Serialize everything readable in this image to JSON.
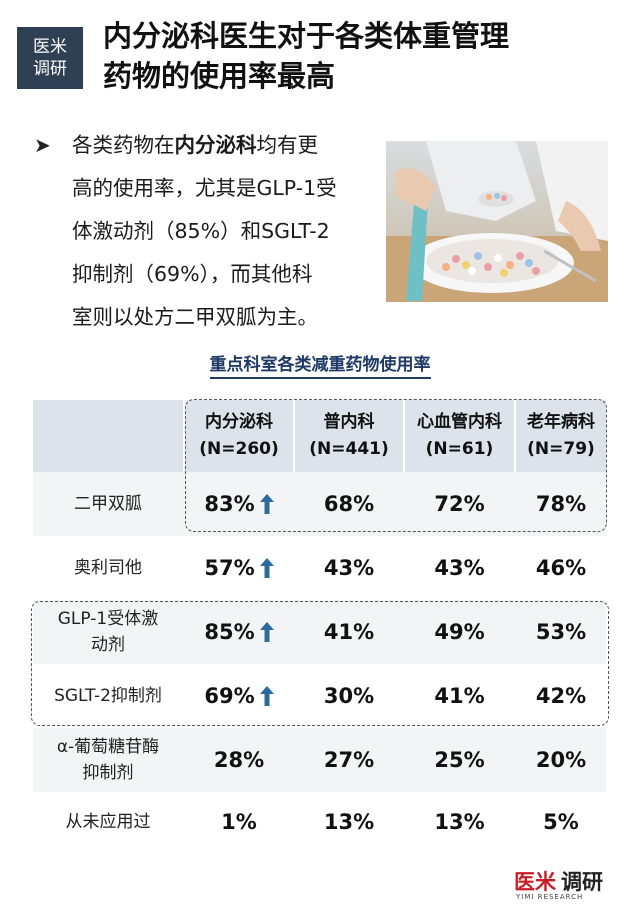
{
  "badge": {
    "line1": "医米",
    "line2": "调研"
  },
  "title": {
    "line1": "内分泌科医生对于各类体重管理",
    "line2": "药物的使用率最高"
  },
  "bullet": {
    "l1_pre": "各类药物在",
    "l1_bold": "内分泌科",
    "l1_post": "均有更",
    "l2": "高的使用率，尤其是GLP-1受",
    "l3": "体激动剂（85%）和SGLT-2",
    "l4": "抑制剂（69%），而其他科",
    "l5": "室则以处方二甲双胍为主。"
  },
  "section_title": "重点科室各类减重药物使用率",
  "table": {
    "headers": [
      {
        "name": "内分泌科",
        "n": "(N=260)"
      },
      {
        "name": "普内科",
        "n": "(N=441)"
      },
      {
        "name": "心血管内科",
        "n": "(N=61)"
      },
      {
        "name": "老年病科",
        "n": "(N=79)"
      }
    ],
    "rows": [
      {
        "label": "二甲双胍",
        "values": [
          "83%",
          "68%",
          "72%",
          "78%"
        ],
        "arrow": true
      },
      {
        "label": "奥利司他",
        "values": [
          "57%",
          "43%",
          "43%",
          "46%"
        ],
        "arrow": true
      },
      {
        "label1": "GLP-1受体激",
        "label2": "动剂",
        "values": [
          "85%",
          "41%",
          "49%",
          "53%"
        ],
        "arrow": true
      },
      {
        "label": "SGLT-2抑制剂",
        "values": [
          "69%",
          "30%",
          "41%",
          "42%"
        ],
        "arrow": true
      },
      {
        "label1": "α-葡萄糖苷酶",
        "label2": "抑制剂",
        "values": [
          "28%",
          "27%",
          "25%",
          "20%"
        ],
        "arrow": false
      },
      {
        "label": "从未应用过",
        "values": [
          "1%",
          "13%",
          "13%",
          "5%"
        ],
        "arrow": false
      }
    ]
  },
  "logo": {
    "part1": "医米",
    "part2": "调研",
    "sub": "YIMI RESEARCH"
  },
  "colors": {
    "badge_bg": "#2f3f54",
    "arrow": "#2b6a9b",
    "section_title": "#1f3a66",
    "logo_red": "#c81f26"
  },
  "icons": {
    "bullet": "arrow-right-icon",
    "increase": "up-arrow-icon"
  }
}
